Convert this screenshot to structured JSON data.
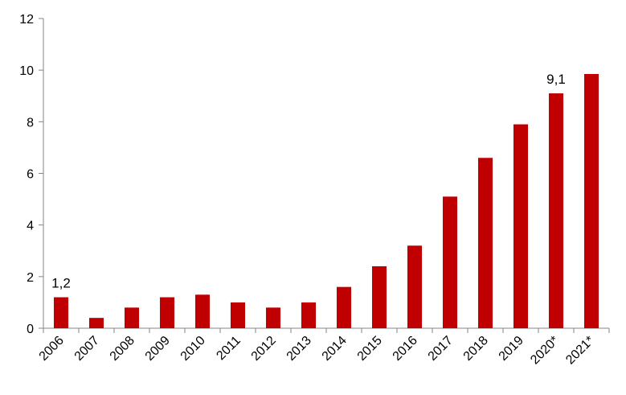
{
  "chart_data": {
    "type": "bar",
    "title": "",
    "xlabel": "",
    "ylabel": "",
    "categories": [
      "2006",
      "2007",
      "2008",
      "2009",
      "2010",
      "2011",
      "2012",
      "2013",
      "2014",
      "2015",
      "2016",
      "2017",
      "2018",
      "2019",
      "2020*",
      "2021*"
    ],
    "values": [
      1.2,
      0.4,
      0.8,
      1.2,
      1.3,
      1.0,
      0.8,
      1.0,
      1.6,
      2.4,
      3.2,
      5.1,
      6.6,
      7.9,
      9.1,
      9.85
    ],
    "ylim": [
      0,
      12
    ],
    "yticks": [
      "0",
      "2",
      "4",
      "6",
      "8",
      "10",
      "12"
    ],
    "data_labels": [
      {
        "category": "2006",
        "text": "1,2"
      },
      {
        "category": "2020*",
        "text": "9,1"
      }
    ],
    "bar_color": "#C00000",
    "grid": false,
    "legend": "none"
  }
}
